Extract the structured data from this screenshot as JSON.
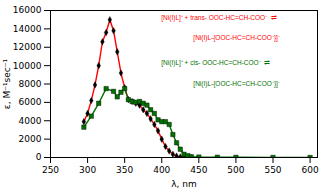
{
  "chart_data": {
    "type": "line",
    "xlabel": "λ, nm",
    "ylabel": "ε, M⁻¹sec⁻¹",
    "xlim": [
      250,
      610
    ],
    "ylim": [
      0,
      16000
    ],
    "xticks": [
      250,
      300,
      350,
      400,
      450,
      500,
      550,
      600
    ],
    "yticks": [
      0,
      2000,
      4000,
      6000,
      8000,
      10000,
      12000,
      14000,
      16000
    ],
    "grid": false,
    "series": [
      {
        "color": "#FF0000",
        "marker": "diamond",
        "x": [
          295,
          300,
          305,
          310,
          315,
          320,
          325,
          330,
          335,
          340,
          345,
          350,
          355,
          360,
          365,
          370,
          375,
          380,
          385,
          390,
          395,
          400,
          405,
          410,
          415,
          420,
          425,
          430,
          435,
          440
        ],
        "values": [
          3900,
          4800,
          6200,
          7900,
          10000,
          12600,
          13600,
          15000,
          13800,
          11500,
          9200,
          7600,
          6300,
          6100,
          5900,
          5700,
          5200,
          4800,
          4200,
          3600,
          2900,
          2000,
          1200,
          700,
          350,
          150,
          60,
          20,
          10,
          5
        ]
      },
      {
        "color": "#007000",
        "marker": "square",
        "x": [
          295,
          305,
          315,
          325,
          335,
          340,
          345,
          350,
          355,
          360,
          365,
          370,
          375,
          380,
          385,
          390,
          395,
          400,
          405,
          410,
          415,
          420,
          425,
          430,
          435,
          440,
          450,
          475,
          500,
          550,
          600
        ],
        "values": [
          3300,
          4500,
          5900,
          7500,
          7200,
          6600,
          7100,
          7500,
          6300,
          6100,
          6000,
          6100,
          5900,
          5700,
          5200,
          4800,
          4100,
          3900,
          3900,
          3600,
          2500,
          1600,
          900,
          350,
          200,
          80,
          50,
          30,
          20,
          10,
          5
        ]
      }
    ],
    "annotations": [
      {
        "text": "[Ni(I)L]⁺ + trans- OOC-HC=CH-COO⁻  ⇌",
        "color": "#FF0000"
      },
      {
        "text": "[Ni(I)L-{OOC-HC=CH-COO⁻}]⁻",
        "color": "#FF0000"
      },
      {
        "text": "[Ni(I)L]⁺ + cis- OOC-HC=CH-COO⁻  ⇌",
        "color": "#007000"
      },
      {
        "text": "[Ni(I)L-{OOC-HC=CH-COO⁻}]⁻",
        "color": "#007000"
      }
    ]
  }
}
